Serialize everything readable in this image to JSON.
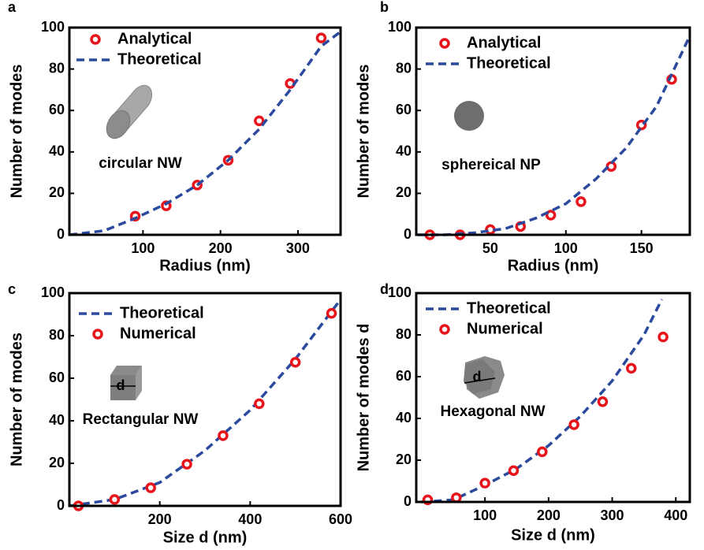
{
  "chart_data": [
    {
      "type": "scatter",
      "panel": "a",
      "xlabel": "Radius  (nm)",
      "ylabel": "Number of modes",
      "xlim": [
        5,
        355
      ],
      "ylim": [
        0,
        100
      ],
      "xticks": [
        100,
        200,
        300
      ],
      "yticks": [
        0,
        20,
        40,
        60,
        80,
        100
      ],
      "legend": "upper left",
      "annotation": "circular NW",
      "series": [
        {
          "name": "Analytical",
          "color": "#e8141c",
          "style": "marker",
          "x": [
            90,
            130,
            170,
            210,
            250,
            290,
            330
          ],
          "values": [
            9,
            14,
            24,
            36,
            55,
            73,
            95
          ]
        },
        {
          "name": "Theoretical",
          "color": "#2b4a9e",
          "style": "dashed",
          "x": [
            5,
            50,
            90,
            130,
            170,
            210,
            250,
            290,
            330,
            355
          ],
          "values": [
            0,
            2,
            8,
            15,
            24,
            36,
            51,
            70,
            91,
            98
          ]
        }
      ]
    },
    {
      "type": "scatter",
      "panel": "b",
      "xlabel": "Radius  (nm)",
      "ylabel": "Number of modes",
      "xlim": [
        1,
        182
      ],
      "ylim": [
        0,
        100
      ],
      "xticks": [
        50,
        100,
        150
      ],
      "yticks": [
        0,
        20,
        40,
        60,
        80,
        100
      ],
      "legend": "upper left",
      "annotation": "sphereical NP",
      "series": [
        {
          "name": "Analytical",
          "color": "#e8141c",
          "style": "marker",
          "x": [
            10,
            30,
            50,
            70,
            90,
            110,
            130,
            150,
            170
          ],
          "values": [
            0,
            0,
            2.5,
            4,
            9.5,
            16,
            33,
            53,
            75
          ]
        },
        {
          "name": "Theoretical",
          "color": "#2b4a9e",
          "style": "dashed",
          "x": [
            2,
            20,
            40,
            60,
            80,
            100,
            120,
            140,
            160,
            182
          ],
          "values": [
            0,
            0,
            1,
            3,
            8,
            15,
            27,
            42,
            62,
            96
          ]
        }
      ]
    },
    {
      "type": "scatter",
      "panel": "c",
      "xlabel": "Size d  (nm)",
      "ylabel": "Number of modes",
      "xlim": [
        0,
        600
      ],
      "ylim": [
        0,
        100
      ],
      "xticks": [
        200,
        400,
        600
      ],
      "yticks": [
        0,
        20,
        40,
        60,
        80,
        100
      ],
      "legend": "upper left",
      "annotation": "Rectangular NW",
      "icon_label": "d",
      "series": [
        {
          "name": "Theoretical",
          "color": "#2b4a9e",
          "style": "dashed",
          "x": [
            0,
            100,
            200,
            300,
            400,
            500,
            600
          ],
          "values": [
            0,
            3,
            11,
            26,
            45,
            69,
            97
          ]
        },
        {
          "name": "Numerical",
          "color": "#e8141c",
          "style": "marker",
          "x": [
            20,
            100,
            180,
            260,
            340,
            420,
            500,
            580
          ],
          "values": [
            0,
            3,
            8.5,
            19.6,
            33,
            48,
            67.5,
            90.5
          ]
        }
      ]
    },
    {
      "type": "scatter",
      "panel": "d",
      "xlabel": "Size d  (nm)",
      "ylabel": "Number of modes d",
      "xlim": [
        -8,
        422
      ],
      "ylim": [
        0,
        100
      ],
      "xticks": [
        100,
        200,
        300,
        400
      ],
      "yticks": [
        0,
        20,
        40,
        60,
        80,
        100
      ],
      "legend": "upper left",
      "annotation": "Hexagonal NW",
      "icon_label": "d",
      "series": [
        {
          "name": "Theoretical",
          "color": "#2b4a9e",
          "style": "dashed",
          "x": [
            0,
            50,
            100,
            150,
            200,
            250,
            300,
            350,
            378
          ],
          "values": [
            0,
            1,
            8,
            16,
            27,
            41,
            58,
            80,
            97
          ]
        },
        {
          "name": "Numerical",
          "color": "#e8141c",
          "style": "marker",
          "x": [
            10,
            55,
            100,
            145,
            190,
            240,
            285,
            330,
            380
          ],
          "values": [
            1,
            2,
            9,
            15,
            24,
            37,
            48,
            64,
            79
          ]
        }
      ]
    }
  ]
}
